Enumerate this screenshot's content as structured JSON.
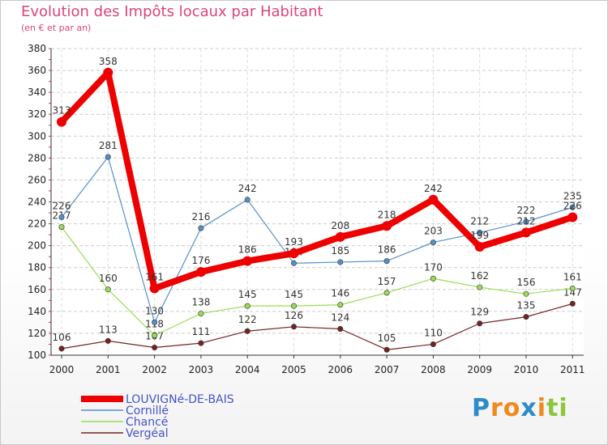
{
  "header": {
    "title": "Evolution des Impôts locaux par Habitant",
    "subtitle": "(en € et par an)"
  },
  "logo": {
    "text": "Proxiti",
    "letters": [
      {
        "char": "P",
        "color": "#2e8bc9"
      },
      {
        "char": "r",
        "color": "#f08a1e"
      },
      {
        "char": "o",
        "color": "#f08a1e"
      },
      {
        "char": "x",
        "color": "#2e8bc9"
      },
      {
        "char": "i",
        "color": "#f08a1e"
      },
      {
        "char": "t",
        "color": "#8cc63f"
      },
      {
        "char": "i",
        "color": "#8cc63f"
      }
    ]
  },
  "chart_data": {
    "type": "line",
    "title": "Evolution des Impôts locaux par Habitant",
    "subtitle": "(en € et par an)",
    "x": [
      "2000",
      "2001",
      "2002",
      "2003",
      "2004",
      "2005",
      "2006",
      "2007",
      "2008",
      "2009",
      "2010",
      "2011"
    ],
    "ylim": [
      100,
      380
    ],
    "yticks": [
      100,
      120,
      140,
      160,
      180,
      200,
      220,
      240,
      260,
      280,
      300,
      320,
      340,
      360,
      380
    ],
    "grid": true,
    "legend_position": "bottom-left",
    "series": [
      {
        "name": "LOUVIGNé-DE-BAIS",
        "color": "#ee0000",
        "values": [
          313,
          358,
          161,
          176,
          186,
          193,
          208,
          218,
          242,
          199,
          212,
          226
        ]
      },
      {
        "name": "Cornillé",
        "color": "#5590c8",
        "values": [
          226,
          281,
          130,
          216,
          242,
          184,
          185,
          186,
          203,
          212,
          222,
          235
        ]
      },
      {
        "name": "Chancé",
        "color": "#99dd55",
        "values": [
          217,
          160,
          118,
          138,
          145,
          145,
          146,
          157,
          170,
          162,
          156,
          161
        ]
      },
      {
        "name": "Vergéal",
        "color": "#772222",
        "values": [
          106,
          113,
          107,
          111,
          122,
          126,
          124,
          105,
          110,
          129,
          135,
          147
        ]
      }
    ]
  }
}
